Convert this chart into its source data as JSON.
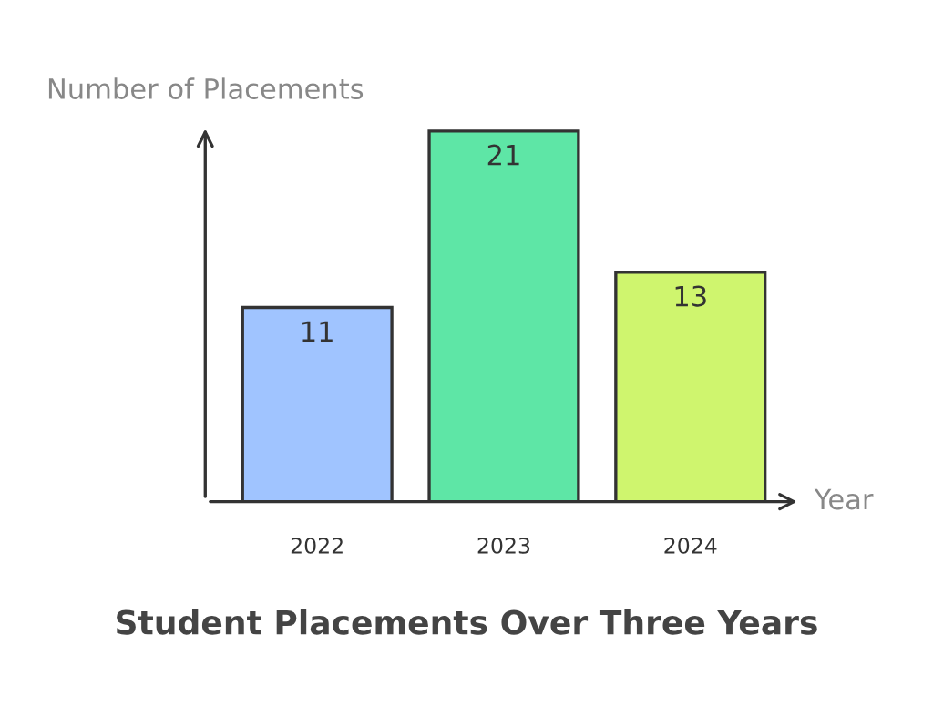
{
  "chart_data": {
    "type": "bar",
    "title": "Student Placements Over Three Years",
    "xlabel": "Year",
    "ylabel": "Number of Placements",
    "categories": [
      "2022",
      "2023",
      "2024"
    ],
    "values": [
      11,
      21,
      13
    ],
    "colors": [
      "#a0c4ff",
      "#5ee6a6",
      "#cff56e"
    ],
    "data_labels": true,
    "grid": false
  }
}
